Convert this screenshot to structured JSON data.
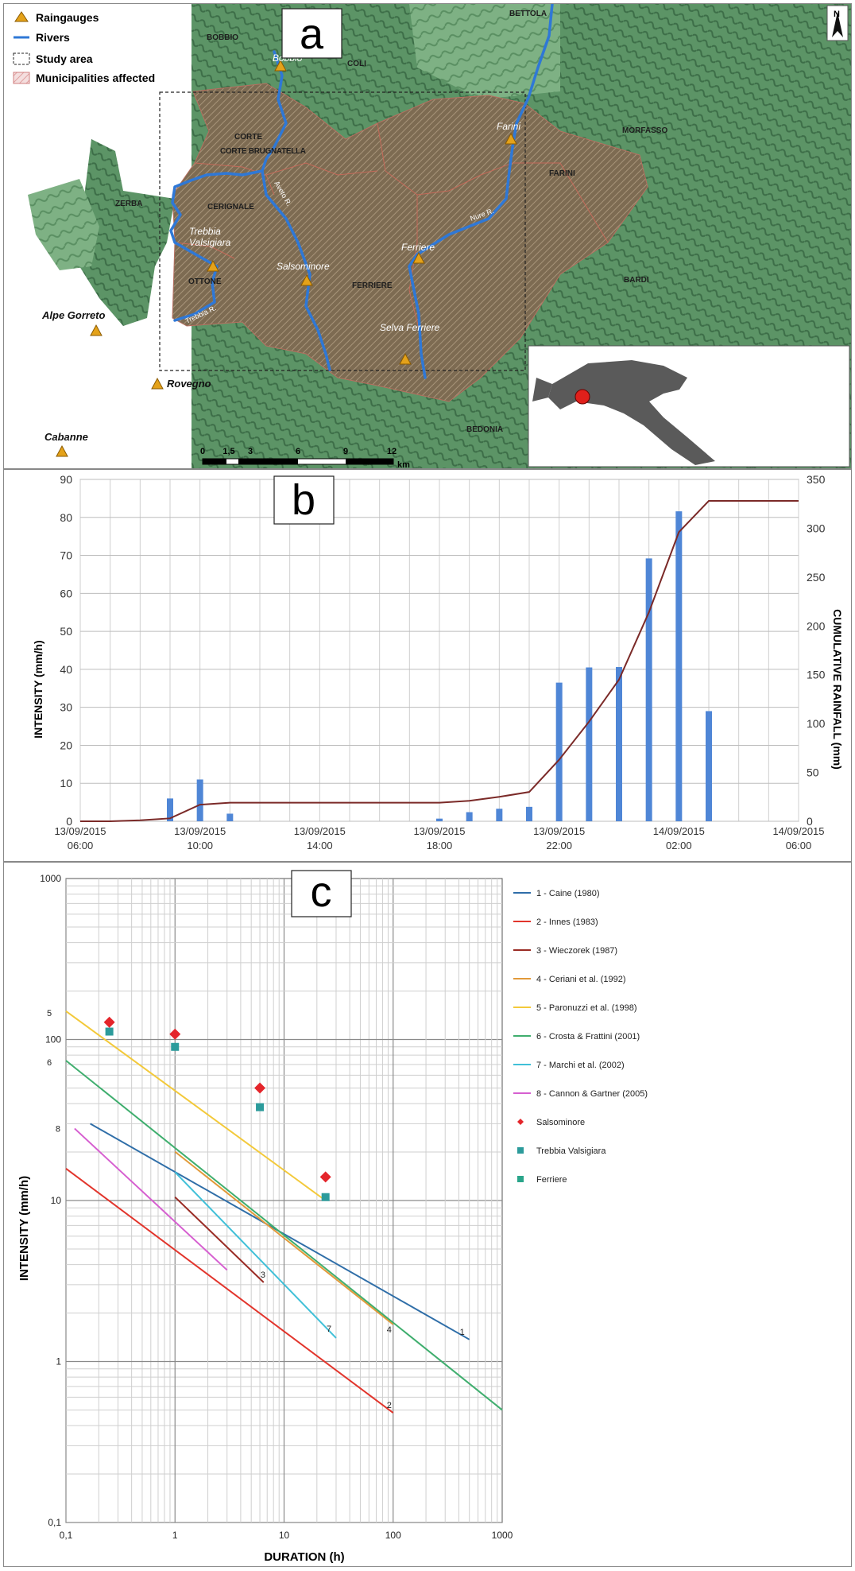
{
  "panel_a": {
    "letter": "a",
    "legend": [
      {
        "label": "Raingauges",
        "symbol": "raingauge"
      },
      {
        "label": "Rivers",
        "symbol": "river"
      },
      {
        "label": "Study area",
        "symbol": "study-area"
      },
      {
        "label": "Municipalities affected",
        "symbol": "municipality"
      }
    ],
    "municipalities": [
      "BOBBIO",
      "COLI",
      "BETTOLA",
      "CORTE BRUGNATELLA",
      "MORFASSO",
      "FARINI",
      "ZERBA",
      "CERIGNALE",
      "OTTONE",
      "FERRIERE",
      "BARDI",
      "BEDONIA"
    ],
    "rivers": [
      "Aveto R.",
      "Nure R.",
      "Trebbia R."
    ],
    "raingauges": [
      "Bobbio",
      "Farini",
      "Ferriere",
      "Salsominore",
      "Trebbia Valsigiara",
      "Selva Ferriere",
      "Alpe Gorreto",
      "Rovegno",
      "Cabanne"
    ],
    "scale_bar": {
      "ticks": [
        "0",
        "1,5",
        "3",
        "6",
        "9",
        "12"
      ],
      "unit": "km"
    },
    "north": "N",
    "colors": {
      "relief_green": "#4f8a5a",
      "study_brown": "#7a6a52",
      "river": "#2f78d6",
      "gauge": "#e4a21a",
      "inset_dot": "#e0201b"
    }
  },
  "panel_b": {
    "letter": "b",
    "ylabel_left": "INTENSITY  (mm/h)",
    "ylabel_right": "CUMULATIVE RAINFALL (mm)",
    "yticks_left": [
      "0",
      "10",
      "20",
      "30",
      "40",
      "50",
      "60",
      "70",
      "80",
      "90"
    ],
    "yticks_right": [
      "0",
      "50",
      "100",
      "150",
      "200",
      "250",
      "300",
      "350"
    ],
    "xticks": [
      {
        "date": "13/09/2015",
        "time": "06:00"
      },
      {
        "date": "13/09/2015",
        "time": "10:00"
      },
      {
        "date": "13/09/2015",
        "time": "14:00"
      },
      {
        "date": "13/09/2015",
        "time": "18:00"
      },
      {
        "date": "13/09/2015",
        "time": "22:00"
      },
      {
        "date": "14/09/2015",
        "time": "02:00"
      },
      {
        "date": "14/09/2015",
        "time": "06:00"
      }
    ]
  },
  "chart_data": [
    {
      "type": "bar",
      "panel": "b",
      "x_hours_from_start": [
        0,
        1,
        2,
        3,
        4,
        5,
        6,
        7,
        8,
        9,
        10,
        11,
        12,
        13,
        14,
        15,
        16,
        17,
        18,
        19,
        20,
        21,
        22,
        23,
        24
      ],
      "x": [
        "13/09/2015 06:00",
        "13/09/2015 07:00",
        "13/09/2015 08:00",
        "13/09/2015 09:00",
        "13/09/2015 10:00",
        "13/09/2015 11:00",
        "13/09/2015 12:00",
        "13/09/2015 13:00",
        "13/09/2015 14:00",
        "13/09/2015 15:00",
        "13/09/2015 16:00",
        "13/09/2015 17:00",
        "13/09/2015 18:00",
        "13/09/2015 19:00",
        "13/09/2015 20:00",
        "13/09/2015 21:00",
        "13/09/2015 22:00",
        "13/09/2015 23:00",
        "14/09/2015 00:00",
        "14/09/2015 01:00",
        "14/09/2015 02:00",
        "14/09/2015 03:00",
        "14/09/2015 04:00",
        "14/09/2015 05:00",
        "14/09/2015 06:00"
      ],
      "series": [
        {
          "axis": "left",
          "kind": "bar",
          "color": "#4f86d6",
          "values": [
            0,
            0,
            0,
            6,
            11,
            2,
            0,
            0,
            0,
            0,
            0,
            0,
            0.7,
            2.4,
            3.3,
            3.8,
            36.5,
            40.5,
            40.6,
            69.2,
            81.6,
            29.0,
            0,
            0,
            0
          ]
        },
        {
          "axis": "right",
          "kind": "line",
          "color": "#7b2a28",
          "values": [
            0,
            0,
            1,
            3,
            17,
            19,
            19,
            19,
            19,
            19,
            19,
            19,
            19,
            21,
            25,
            30,
            63,
            102,
            145,
            214,
            296,
            328,
            328,
            328,
            328
          ]
        }
      ],
      "ylim_left": [
        0,
        90
      ],
      "ylim_right": [
        0,
        350
      ],
      "grid": true
    },
    {
      "type": "line",
      "panel": "c",
      "xlabel": "DURATION (h)",
      "ylabel": "INTENSITY  (mm/h)",
      "xscale": "log",
      "yscale": "log",
      "xlim": [
        0.1,
        1000
      ],
      "ylim": [
        0.1,
        1000
      ],
      "xticks": [
        "0,1",
        "1",
        "10",
        "100",
        "1000"
      ],
      "yticks": [
        "0,1",
        "1",
        "10",
        "100",
        "1000"
      ],
      "grid": true,
      "legend_position": "right",
      "series": [
        {
          "name": "1 - Caine (1980)",
          "label": "1",
          "color": "#2f6ea8",
          "x": [
            0.167,
            500
          ],
          "y": [
            30.0,
            1.37
          ]
        },
        {
          "name": "2 - Innes (1983)",
          "label": "2",
          "color": "#e2352c",
          "x": [
            0.1,
            100
          ],
          "y": [
            15.8,
            0.48
          ]
        },
        {
          "name": "3 - Wieczorek (1987)",
          "label": "3",
          "color": "#9a2b24",
          "x": [
            1,
            6.5
          ],
          "y": [
            10.5,
            3.1
          ]
        },
        {
          "name": "4 - Ceriani et al. (1992)",
          "label": "4",
          "color": "#e29a3a",
          "x": [
            1,
            100
          ],
          "y": [
            20.1,
            1.7
          ]
        },
        {
          "name": "5 - Paronuzzi et al. (1998)",
          "label": "5",
          "color": "#f3c93a",
          "x": [
            0.1,
            24
          ],
          "y": [
            150,
            10.0
          ]
        },
        {
          "name": "6 - Crosta & Frattini (2001)",
          "label": "6",
          "color": "#3fae6e",
          "x": [
            0.1,
            1000
          ],
          "y": [
            74,
            0.5
          ]
        },
        {
          "name": "7 - Marchi et al. (2002)",
          "label": "7",
          "color": "#40c0d8",
          "x": [
            1,
            30
          ],
          "y": [
            15,
            1.4
          ]
        },
        {
          "name": "8 - Cannon & Gartner (2005)",
          "label": "8",
          "color": "#d65fd0",
          "x": [
            0.12,
            3
          ],
          "y": [
            28,
            3.7
          ]
        },
        {
          "name": "Salsominore",
          "kind": "scatter",
          "marker": "diamond",
          "color": "#e4252b",
          "x": [
            0.25,
            1,
            6,
            24
          ],
          "y": [
            128,
            108,
            50,
            14
          ]
        },
        {
          "name": "Trebbia Valsigiara",
          "kind": "scatter",
          "marker": "square",
          "color": "#2c9b9b",
          "x": [
            0.25,
            1,
            6,
            24
          ],
          "y": [
            112,
            90,
            38,
            10.5
          ]
        },
        {
          "name": "Ferriere",
          "kind": "scatter",
          "marker": "square",
          "color": "#2aa58a",
          "x": [],
          "y": []
        }
      ]
    }
  ],
  "panel_c": {
    "letter": "c",
    "xlabel": "DURATION (h)",
    "ylabel": "INTENSITY  (mm/h)"
  }
}
